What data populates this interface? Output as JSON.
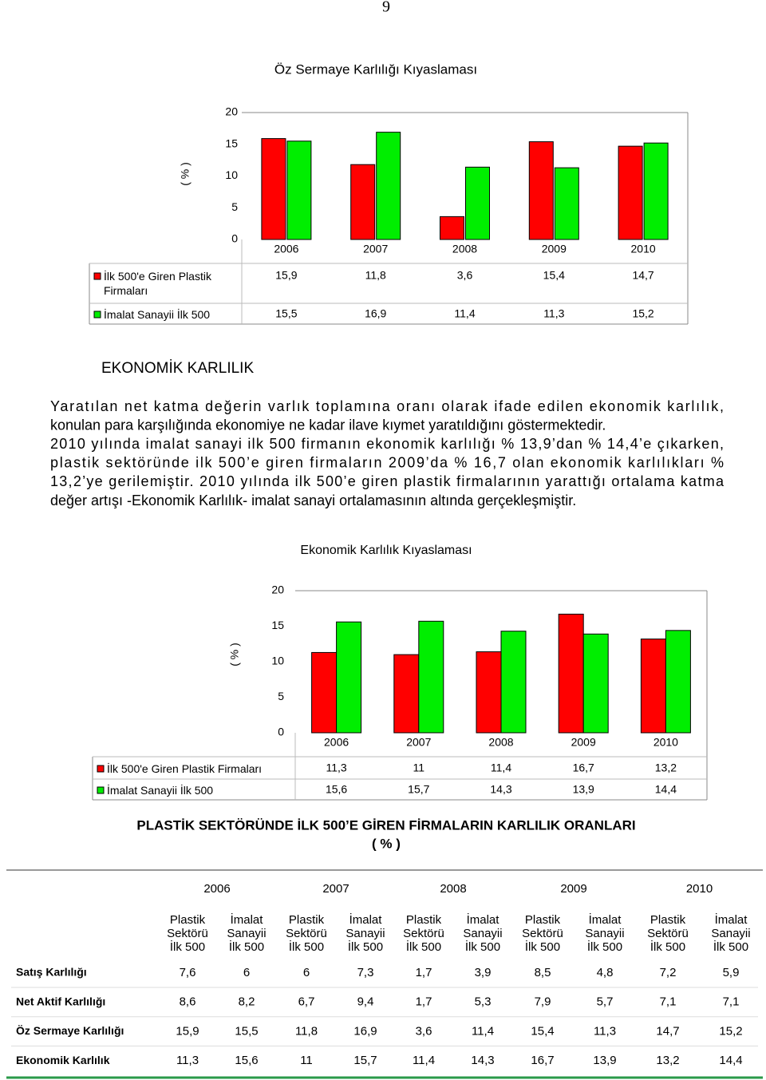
{
  "page_number": "9",
  "chart_data": [
    {
      "type": "bar",
      "title": "Öz Sermaye Karlılığı Kıyaslaması",
      "y_label": "( % )",
      "categories": [
        "2006",
        "2007",
        "2008",
        "2009",
        "2010"
      ],
      "series": [
        {
          "name": "İlk 500'e Giren Plastik Firmaları",
          "color": "#ff0000",
          "values": [
            15.9,
            11.8,
            3.6,
            15.4,
            14.7
          ],
          "value_labels": [
            "15,9",
            "11,8",
            "3,6",
            "15,4",
            "14,7"
          ]
        },
        {
          "name": "İmalat Sanayii İlk 500",
          "color": "#00ee00",
          "values": [
            15.5,
            16.9,
            11.4,
            11.3,
            15.2
          ],
          "value_labels": [
            "15,5",
            "16,9",
            "11,4",
            "11,3",
            "15,2"
          ]
        }
      ],
      "ylim": [
        0,
        20
      ],
      "yticks": [
        0,
        5,
        10,
        15,
        20
      ],
      "grid": false
    },
    {
      "type": "bar",
      "title": "Ekonomik Karlılık Kıyaslaması",
      "y_label": "( % )",
      "categories": [
        "2006",
        "2007",
        "2008",
        "2009",
        "2010"
      ],
      "series": [
        {
          "name": "İlk 500'e Giren Plastik Firmaları",
          "color": "#ff0000",
          "values": [
            11.3,
            11,
            11.4,
            16.7,
            13.2
          ],
          "value_labels": [
            "11,3",
            "11",
            "11,4",
            "16,7",
            "13,2"
          ]
        },
        {
          "name": "İmalat Sanayii İlk 500",
          "color": "#00ee00",
          "values": [
            15.6,
            15.7,
            14.3,
            13.9,
            14.4
          ],
          "value_labels": [
            "15,6",
            "15,7",
            "14,3",
            "13,9",
            "14,4"
          ]
        }
      ],
      "ylim": [
        0,
        20
      ],
      "yticks": [
        0,
        5,
        10,
        15,
        20
      ],
      "grid": false
    }
  ],
  "section_title": "EKONOMİK KARLILIK",
  "paragraphs": [
    [
      "Yaratılan net katma değerin varlık toplamına oranı olarak ifade edilen ekonomik karlılık,",
      "konulan para karşılığında ekonomiye ne kadar ilave kıymet yaratıldığını göstermektedir."
    ],
    [
      "2010 yılında imalat sanayi ilk 500 firmanın ekonomik karlılığı % 13,9’dan % 14,4’e çıkarken,",
      "plastik sektöründe ilk 500’e giren firmaların 2009’da % 16,7 olan ekonomik karlılıkları %",
      "13,2’ye gerilemiştir. 2010 yılında ilk 500’e giren plastik firmalarının yarattığı ortalama katma",
      "değer artışı -Ekonomik Karlılık- imalat sanayi ortalamasının altında gerçekleşmiştir."
    ]
  ],
  "table": {
    "title": [
      "PLASTİK SEKTÖRÜNDE İLK 500’E GİREN FİRMALARIN KARLILIK ORANLARI",
      "( % )"
    ],
    "years": [
      "2006",
      "2007",
      "2008",
      "2009",
      "2010"
    ],
    "sub_headers": [
      [
        "Plastik",
        "Sektörü",
        "İlk 500"
      ],
      [
        "İmalat",
        "Sanayii",
        "İlk 500"
      ],
      [
        "Plastik",
        "Sektörü",
        "İlk 500"
      ],
      [
        "İmalat",
        "Sanayii",
        "İlk 500"
      ],
      [
        "Plastik",
        "Sektörü",
        "İlk 500"
      ],
      [
        "İmalat",
        "Sanayii",
        "İlk 500"
      ],
      [
        "Plastik",
        "Sektörü",
        "İlk 500"
      ],
      [
        "İmalat",
        "Sanayii",
        "İlk 500"
      ],
      [
        "Plastik",
        "Sektörü",
        "İlk 500"
      ],
      [
        "İmalat",
        "Sanayii",
        "İlk 500"
      ]
    ],
    "rows": [
      {
        "label": "Satış Karlılığı",
        "cells": [
          "7,6",
          "6",
          "6",
          "7,3",
          "1,7",
          "3,9",
          "8,5",
          "4,8",
          "7,2",
          "5,9"
        ]
      },
      {
        "label": "Net Aktif Karlılığı",
        "cells": [
          "8,6",
          "8,2",
          "6,7",
          "9,4",
          "1,7",
          "5,3",
          "7,9",
          "5,7",
          "7,1",
          "7,1"
        ]
      },
      {
        "label": "Öz Sermaye Karlılığı",
        "cells": [
          "15,9",
          "15,5",
          "11,8",
          "16,9",
          "3,6",
          "11,4",
          "15,4",
          "11,3",
          "14,7",
          "15,2"
        ]
      },
      {
        "label": "Ekonomik Karlılık",
        "cells": [
          "11,3",
          "15,6",
          "11",
          "15,7",
          "11,4",
          "14,3",
          "16,7",
          "13,9",
          "13,2",
          "14,4"
        ]
      }
    ]
  }
}
